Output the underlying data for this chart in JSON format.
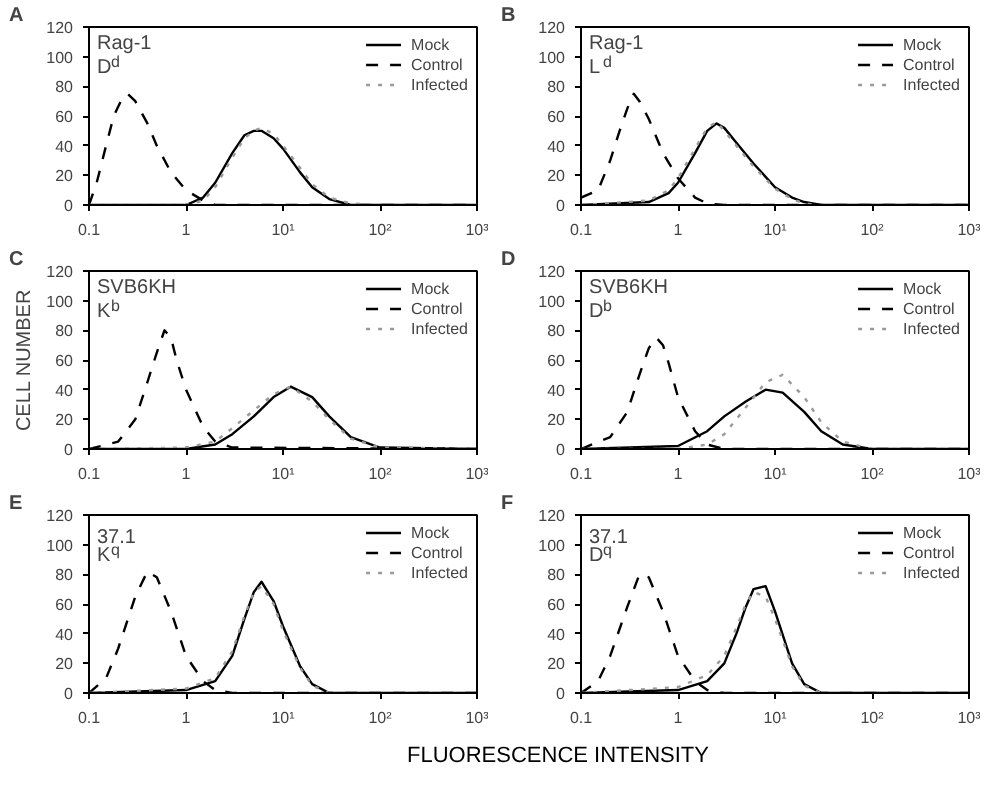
{
  "chart_data": [
    {
      "type": "line",
      "title": "A",
      "annotations": [
        "Rag-1",
        "D$^{d}$"
      ],
      "xlim": [
        0.1,
        1000
      ],
      "ylim": [
        0,
        120
      ],
      "log": "x",
      "grid": false,
      "legend": "top right",
      "xticks": [
        0.1,
        1,
        {
          "value": 10,
          "label": "10¹"
        },
        {
          "value": 100,
          "label": "10²"
        },
        {
          "value": 1000,
          "label": "10³"
        }
      ],
      "yticks": [
        0,
        20,
        40,
        60,
        80,
        100,
        120
      ],
      "series": [
        {
          "name": "Mock",
          "color": "#000000",
          "line_style": "solid",
          "x": [
            0.1,
            1,
            1.5,
            2,
            3,
            4,
            5,
            6,
            8,
            10,
            15,
            20,
            30,
            50,
            100,
            1000
          ],
          "values": [
            0,
            0,
            5,
            15,
            35,
            47,
            50,
            50,
            45,
            38,
            22,
            12,
            4,
            0,
            0,
            0
          ]
        },
        {
          "name": "Control",
          "color": "#000000",
          "line_style": "dashed",
          "x": [
            0.1,
            0.12,
            0.15,
            0.18,
            0.22,
            0.25,
            0.3,
            0.4,
            0.5,
            0.7,
            1,
            1.5,
            2,
            3,
            10,
            1000
          ],
          "values": [
            0,
            15,
            40,
            60,
            72,
            75,
            70,
            55,
            40,
            22,
            10,
            3,
            0,
            0,
            0,
            0
          ]
        },
        {
          "name": "Infected",
          "color": "#999999",
          "line_style": "dotted",
          "x": [
            0.1,
            1,
            1.5,
            2,
            3,
            4,
            5,
            6,
            8,
            10,
            15,
            20,
            30,
            50,
            100,
            1000
          ],
          "values": [
            0,
            0,
            3,
            12,
            32,
            45,
            50,
            52,
            48,
            40,
            25,
            14,
            5,
            1,
            0,
            0
          ]
        }
      ]
    },
    {
      "type": "line",
      "title": "B",
      "annotations": [
        "Rag-1",
        "L$^{d}$"
      ],
      "xlim": [
        0.1,
        1000
      ],
      "ylim": [
        0,
        120
      ],
      "log": "x",
      "grid": false,
      "legend": "top right",
      "xticks": [
        0.1,
        1,
        {
          "value": 10,
          "label": "10¹"
        },
        {
          "value": 100,
          "label": "10²"
        },
        {
          "value": 1000,
          "label": "10³"
        }
      ],
      "yticks": [
        0,
        20,
        40,
        60,
        80,
        100,
        120
      ],
      "series": [
        {
          "name": "Mock",
          "color": "#000000",
          "line_style": "solid",
          "x": [
            0.1,
            0.5,
            0.8,
            1,
            1.5,
            2,
            2.5,
            3,
            4,
            6,
            10,
            15,
            20,
            30,
            1000
          ],
          "values": [
            0,
            2,
            8,
            15,
            35,
            50,
            55,
            52,
            42,
            28,
            12,
            5,
            2,
            0,
            0
          ]
        },
        {
          "name": "Control",
          "color": "#000000",
          "line_style": "dashed",
          "x": [
            0.1,
            0.15,
            0.2,
            0.25,
            0.3,
            0.35,
            0.4,
            0.5,
            0.7,
            1,
            1.5,
            2,
            3,
            1000
          ],
          "values": [
            5,
            10,
            30,
            50,
            65,
            75,
            70,
            58,
            35,
            18,
            5,
            1,
            0,
            0
          ]
        },
        {
          "name": "Infected",
          "color": "#999999",
          "line_style": "dotted",
          "x": [
            0.1,
            0.5,
            0.8,
            1,
            1.5,
            2,
            2.5,
            3,
            4,
            6,
            10,
            15,
            20,
            30,
            1000
          ],
          "values": [
            0,
            3,
            10,
            18,
            38,
            52,
            56,
            50,
            40,
            26,
            11,
            4,
            1,
            0,
            0
          ]
        }
      ]
    },
    {
      "type": "line",
      "title": "C",
      "ylabel": "CELL NUMBER",
      "annotations": [
        "SVB6KH",
        "K$^{b}$"
      ],
      "xlim": [
        0.1,
        1000
      ],
      "ylim": [
        0,
        120
      ],
      "log": "x",
      "grid": false,
      "legend": "top right",
      "xticks": [
        0.1,
        1,
        {
          "value": 10,
          "label": "10¹"
        },
        {
          "value": 100,
          "label": "10²"
        },
        {
          "value": 1000,
          "label": "10³"
        }
      ],
      "yticks": [
        0,
        20,
        40,
        60,
        80,
        100,
        120
      ],
      "series": [
        {
          "name": "Mock",
          "color": "#000000",
          "line_style": "solid",
          "x": [
            0.1,
            1,
            2,
            3,
            5,
            8,
            12,
            20,
            30,
            50,
            100,
            1000
          ],
          "values": [
            0,
            0,
            3,
            10,
            22,
            35,
            42,
            35,
            22,
            8,
            1,
            0
          ]
        },
        {
          "name": "Control",
          "color": "#000000",
          "line_style": "dashed",
          "x": [
            0.1,
            0.2,
            0.3,
            0.4,
            0.5,
            0.6,
            0.7,
            0.8,
            1,
            1.5,
            2,
            3,
            1000
          ],
          "values": [
            0,
            5,
            20,
            45,
            65,
            80,
            75,
            60,
            40,
            15,
            5,
            1,
            0
          ]
        },
        {
          "name": "Infected",
          "color": "#999999",
          "line_style": "dotted",
          "x": [
            0.1,
            1,
            2,
            3,
            5,
            8,
            12,
            20,
            30,
            50,
            100,
            1000
          ],
          "values": [
            0,
            1,
            5,
            14,
            26,
            37,
            42,
            32,
            20,
            7,
            1,
            0
          ]
        }
      ]
    },
    {
      "type": "line",
      "title": "D",
      "annotations": [
        "SVB6KH",
        "D$^{b}$"
      ],
      "xlim": [
        0.1,
        1000
      ],
      "ylim": [
        0,
        120
      ],
      "log": "x",
      "grid": false,
      "legend": "top right",
      "xticks": [
        0.1,
        1,
        {
          "value": 10,
          "label": "10¹"
        },
        {
          "value": 100,
          "label": "10²"
        },
        {
          "value": 1000,
          "label": "10³"
        }
      ],
      "yticks": [
        0,
        20,
        40,
        60,
        80,
        100,
        120
      ],
      "series": [
        {
          "name": "Mock",
          "color": "#000000",
          "line_style": "solid",
          "x": [
            0.1,
            1,
            2,
            3,
            5,
            8,
            12,
            20,
            30,
            50,
            100,
            1000
          ],
          "values": [
            0,
            2,
            12,
            22,
            32,
            40,
            38,
            25,
            12,
            3,
            0,
            0
          ]
        },
        {
          "name": "Control",
          "color": "#000000",
          "line_style": "dashed",
          "x": [
            0.1,
            0.2,
            0.3,
            0.4,
            0.5,
            0.6,
            0.7,
            0.8,
            1,
            1.5,
            2,
            3,
            1000
          ],
          "values": [
            0,
            8,
            25,
            50,
            68,
            75,
            70,
            58,
            35,
            12,
            3,
            0,
            0
          ]
        },
        {
          "name": "Infected",
          "color": "#999999",
          "line_style": "dotted",
          "x": [
            0.1,
            1,
            2,
            3,
            5,
            8,
            12,
            20,
            30,
            50,
            100,
            1000
          ],
          "values": [
            0,
            0,
            3,
            10,
            28,
            45,
            50,
            35,
            18,
            5,
            0,
            0
          ]
        }
      ]
    },
    {
      "type": "line",
      "title": "E",
      "xlabel": "FLUORESCENCE INTENSITY",
      "annotations": [
        "37.1",
        "K$^{q}$"
      ],
      "xlim": [
        0.1,
        1000
      ],
      "ylim": [
        0,
        120
      ],
      "log": "x",
      "grid": false,
      "legend": "top right",
      "xticks": [
        0.1,
        1,
        {
          "value": 10,
          "label": "10¹"
        },
        {
          "value": 100,
          "label": "10²"
        },
        {
          "value": 1000,
          "label": "10³"
        }
      ],
      "yticks": [
        0,
        20,
        40,
        60,
        80,
        100,
        120
      ],
      "series": [
        {
          "name": "Mock",
          "color": "#000000",
          "line_style": "solid",
          "x": [
            0.1,
            1,
            2,
            3,
            4,
            5,
            6,
            8,
            10,
            15,
            20,
            30,
            1000
          ],
          "values": [
            0,
            2,
            8,
            25,
            50,
            68,
            75,
            62,
            45,
            18,
            6,
            0,
            0
          ]
        },
        {
          "name": "Control",
          "color": "#000000",
          "line_style": "dashed",
          "x": [
            0.1,
            0.15,
            0.2,
            0.3,
            0.4,
            0.5,
            0.7,
            1,
            1.5,
            2,
            3,
            1000
          ],
          "values": [
            0,
            10,
            30,
            65,
            82,
            78,
            55,
            25,
            8,
            2,
            0,
            0
          ]
        },
        {
          "name": "Infected",
          "color": "#999999",
          "line_style": "dotted",
          "x": [
            0.1,
            1,
            2,
            3,
            4,
            5,
            6,
            8,
            10,
            15,
            20,
            30,
            1000
          ],
          "values": [
            0,
            3,
            10,
            28,
            52,
            68,
            72,
            60,
            42,
            17,
            5,
            0,
            0
          ]
        }
      ]
    },
    {
      "type": "line",
      "title": "F",
      "annotations": [
        "37.1",
        "D$^{q}$"
      ],
      "xlim": [
        0.1,
        1000
      ],
      "ylim": [
        0,
        120
      ],
      "log": "x",
      "grid": false,
      "legend": "top right",
      "xticks": [
        0.1,
        1,
        {
          "value": 10,
          "label": "10¹"
        },
        {
          "value": 100,
          "label": "10²"
        },
        {
          "value": 1000,
          "label": "10³"
        }
      ],
      "yticks": [
        0,
        20,
        40,
        60,
        80,
        100,
        120
      ],
      "series": [
        {
          "name": "Mock",
          "color": "#000000",
          "line_style": "solid",
          "x": [
            0.1,
            1,
            2,
            3,
            4,
            5,
            6,
            8,
            10,
            15,
            20,
            30,
            1000
          ],
          "values": [
            0,
            2,
            8,
            20,
            40,
            58,
            70,
            72,
            55,
            20,
            6,
            0,
            0
          ]
        },
        {
          "name": "Control",
          "color": "#000000",
          "line_style": "dashed",
          "x": [
            0.1,
            0.15,
            0.2,
            0.3,
            0.4,
            0.5,
            0.7,
            1,
            1.5,
            2,
            3,
            1000
          ],
          "values": [
            0,
            8,
            25,
            58,
            80,
            78,
            55,
            25,
            8,
            2,
            0,
            0
          ]
        },
        {
          "name": "Infected",
          "color": "#999999",
          "line_style": "dotted",
          "x": [
            0.1,
            1,
            2,
            3,
            4,
            5,
            6,
            8,
            10,
            15,
            20,
            30,
            1000
          ],
          "values": [
            0,
            4,
            12,
            25,
            44,
            60,
            68,
            65,
            50,
            18,
            5,
            0,
            0
          ]
        }
      ]
    }
  ]
}
